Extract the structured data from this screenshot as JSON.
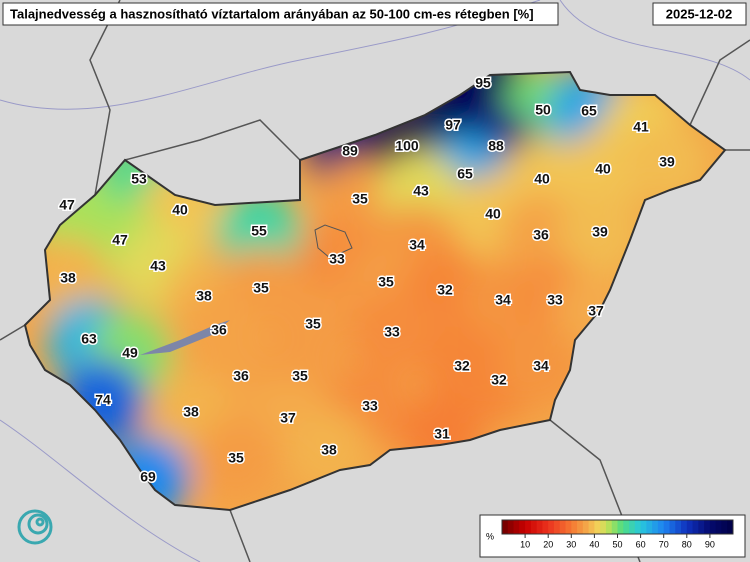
{
  "header": {
    "title": "Talajnedvesség a hasznosítható víztartalom arányában az 50-100 cm-es rétegben [%]",
    "date": "2025-12-02"
  },
  "map": {
    "values": [
      95,
      50,
      65,
      97,
      41,
      89,
      100,
      88,
      53,
      65,
      40,
      40,
      39,
      47,
      40,
      35,
      43,
      40,
      55,
      47,
      34,
      36,
      39,
      43,
      33,
      38,
      35,
      38,
      35,
      32,
      34,
      33,
      37,
      36,
      35,
      63,
      33,
      49,
      36,
      35,
      32,
      32,
      34,
      74,
      38,
      33,
      37,
      31,
      38,
      35,
      69
    ]
  },
  "colorbar": {
    "unit": "%",
    "range": [
      0,
      100
    ],
    "ticks": [
      10,
      20,
      30,
      40,
      50,
      60,
      70,
      80,
      90
    ]
  }
}
